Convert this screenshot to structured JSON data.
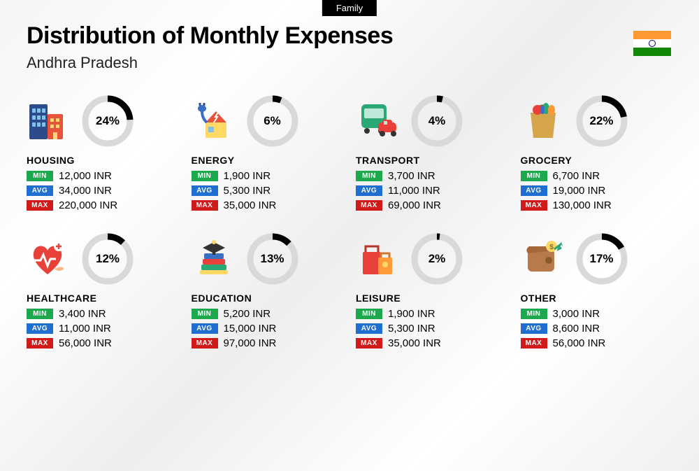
{
  "badge": "Family",
  "title": "Distribution of Monthly Expenses",
  "subtitle": "Andhra Pradesh",
  "currency": "INR",
  "colors": {
    "min_tag": "#1ca84d",
    "avg_tag": "#1f6fd1",
    "max_tag": "#d11b1b",
    "donut_track": "#d9d9d9",
    "donut_fill": "#000000"
  },
  "tags": {
    "min": "MIN",
    "avg": "AVG",
    "max": "MAX"
  },
  "donut": {
    "radius": 32,
    "stroke": 9
  },
  "categories": [
    {
      "key": "housing",
      "name": "HOUSING",
      "pct": 24,
      "min": "12,000",
      "avg": "34,000",
      "max": "220,000",
      "icon": "housing-icon"
    },
    {
      "key": "energy",
      "name": "ENERGY",
      "pct": 6,
      "min": "1,900",
      "avg": "5,300",
      "max": "35,000",
      "icon": "energy-icon"
    },
    {
      "key": "transport",
      "name": "TRANSPORT",
      "pct": 4,
      "min": "3,700",
      "avg": "11,000",
      "max": "69,000",
      "icon": "transport-icon"
    },
    {
      "key": "grocery",
      "name": "GROCERY",
      "pct": 22,
      "min": "6,700",
      "avg": "19,000",
      "max": "130,000",
      "icon": "grocery-icon"
    },
    {
      "key": "healthcare",
      "name": "HEALTHCARE",
      "pct": 12,
      "min": "3,400",
      "avg": "11,000",
      "max": "56,000",
      "icon": "healthcare-icon"
    },
    {
      "key": "education",
      "name": "EDUCATION",
      "pct": 13,
      "min": "5,200",
      "avg": "15,000",
      "max": "97,000",
      "icon": "education-icon"
    },
    {
      "key": "leisure",
      "name": "LEISURE",
      "pct": 2,
      "min": "1,900",
      "avg": "5,300",
      "max": "35,000",
      "icon": "leisure-icon"
    },
    {
      "key": "other",
      "name": "OTHER",
      "pct": 17,
      "min": "3,000",
      "avg": "8,600",
      "max": "56,000",
      "icon": "other-icon"
    }
  ]
}
